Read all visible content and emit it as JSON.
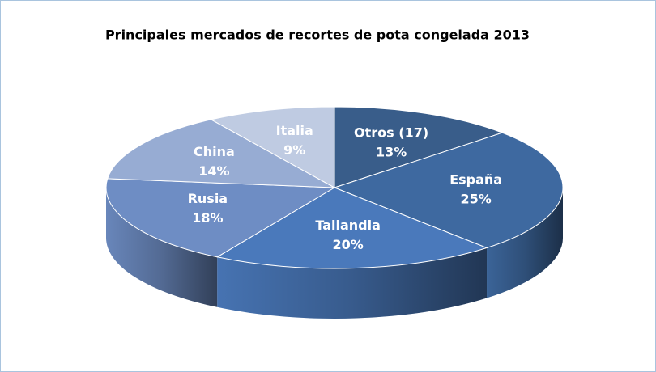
{
  "chart_data": {
    "type": "pie3d",
    "title": "Principales mercados de  recortes de pota congelada 2013",
    "categories": [
      "Otros (17)",
      "España",
      "Tailandia",
      "Rusia",
      "China",
      "Italia"
    ],
    "values": [
      13,
      25,
      20,
      18,
      14,
      9
    ],
    "value_labels": [
      "13%",
      "25%",
      "20%",
      "18%",
      "14%",
      "9%"
    ],
    "colors": [
      "#395d8a",
      "#3e69a0",
      "#4a79bb",
      "#6e8dc4",
      "#97acd3",
      "#bfcbe2"
    ]
  }
}
